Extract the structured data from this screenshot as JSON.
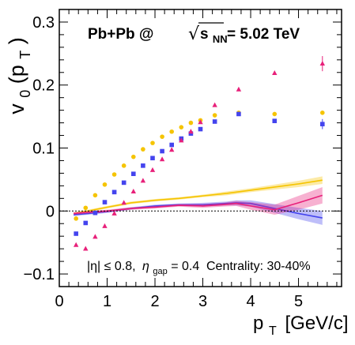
{
  "chart_data": {
    "type": "scatter",
    "title_parts": {
      "collision": "Pb+Pb @",
      "sqrt_sym": "√",
      "s_label": "s",
      "s_sub": "NN",
      "energy": "= 5.02 TeV"
    },
    "xlabel": {
      "main": "p",
      "sub": "T",
      "unit": "[GeV/c]"
    },
    "ylabel": {
      "main": "v",
      "sub0": "0",
      "open": "(p",
      "subT": "T",
      "close": ")"
    },
    "annotation_left": {
      "eta_abs": "|η| ≤ 0.8,",
      "eta": "η",
      "gap": "gap",
      "val": "= 0.4"
    },
    "annotation_right": "Centrality: 30-40%",
    "xlim": [
      0,
      5.9
    ],
    "ylim": [
      -0.12,
      0.32
    ],
    "xticks": [
      0,
      1,
      2,
      3,
      4,
      5
    ],
    "yticks": [
      -0.1,
      0,
      0.1,
      0.2,
      0.3
    ],
    "ytick_labels": [
      "−0.1",
      "0",
      "0.1",
      "0.2",
      "0.3"
    ],
    "reference_line_y": 0,
    "series": [
      {
        "color": "#f5c400",
        "marker": "circle",
        "x": [
          0.35,
          0.55,
          0.75,
          0.95,
          1.15,
          1.35,
          1.55,
          1.75,
          1.95,
          2.15,
          2.35,
          2.55,
          2.75,
          2.95,
          3.25,
          3.75,
          4.5,
          5.5
        ],
        "y": [
          -0.012,
          0.005,
          0.025,
          0.042,
          0.058,
          0.072,
          0.086,
          0.098,
          0.108,
          0.118,
          0.126,
          0.133,
          0.14,
          0.144,
          0.152,
          0.156,
          0.154,
          0.156
        ]
      },
      {
        "color": "#4444ee",
        "marker": "square",
        "x": [
          0.35,
          0.55,
          0.75,
          0.95,
          1.15,
          1.35,
          1.55,
          1.75,
          1.95,
          2.15,
          2.35,
          2.55,
          2.75,
          2.95,
          3.25,
          3.75,
          4.5,
          5.5
        ],
        "y": [
          -0.036,
          -0.019,
          -0.003,
          0.014,
          0.03,
          0.045,
          0.059,
          0.072,
          0.084,
          0.095,
          0.105,
          0.115,
          0.123,
          0.13,
          0.142,
          0.154,
          0.143,
          0.138
        ]
      },
      {
        "color": "#e8207a",
        "marker": "triangle",
        "x": [
          0.35,
          0.55,
          0.75,
          0.95,
          1.15,
          1.35,
          1.55,
          1.75,
          1.95,
          2.15,
          2.35,
          2.55,
          2.75,
          2.95,
          3.25,
          3.75,
          4.5,
          5.5
        ],
        "y": [
          -0.054,
          -0.06,
          -0.041,
          -0.024,
          -0.004,
          0.013,
          0.031,
          0.048,
          0.065,
          0.082,
          0.097,
          0.112,
          0.126,
          0.141,
          0.168,
          0.193,
          0.219,
          0.234
        ]
      }
    ],
    "bands": [
      {
        "color": "#f5c400",
        "x": [
          0.3,
          0.6,
          1.0,
          1.5,
          2.0,
          2.5,
          3.0,
          3.5,
          4.0,
          4.5,
          5.0,
          5.5
        ],
        "y": [
          -0.004,
          0.0,
          0.006,
          0.013,
          0.017,
          0.02,
          0.024,
          0.028,
          0.033,
          0.038,
          0.043,
          0.049
        ],
        "err": [
          0.002,
          0.002,
          0.002,
          0.002,
          0.002,
          0.002,
          0.002,
          0.003,
          0.003,
          0.004,
          0.005,
          0.006
        ]
      },
      {
        "color": "#4444ee",
        "x": [
          0.3,
          0.6,
          1.0,
          1.5,
          2.0,
          2.5,
          3.0,
          3.5,
          3.7,
          4.0,
          4.5,
          5.0,
          5.5
        ],
        "y": [
          -0.006,
          -0.004,
          -0.001,
          0.004,
          0.008,
          0.01,
          0.01,
          0.012,
          0.013,
          0.012,
          0.004,
          -0.004,
          -0.011
        ],
        "err": [
          0.002,
          0.002,
          0.002,
          0.002,
          0.002,
          0.002,
          0.003,
          0.003,
          0.004,
          0.005,
          0.007,
          0.009,
          0.011
        ]
      },
      {
        "color": "#e8207a",
        "x": [
          0.3,
          0.6,
          1.0,
          1.5,
          2.0,
          2.5,
          3.0,
          3.4,
          3.7,
          4.0,
          4.5,
          5.0,
          5.5
        ],
        "y": [
          -0.004,
          -0.002,
          0.0,
          0.004,
          0.006,
          0.009,
          0.008,
          0.01,
          0.012,
          0.008,
          0.002,
          0.013,
          0.025
        ],
        "err": [
          0.002,
          0.002,
          0.002,
          0.002,
          0.002,
          0.002,
          0.003,
          0.003,
          0.004,
          0.006,
          0.008,
          0.011,
          0.013
        ]
      }
    ]
  }
}
